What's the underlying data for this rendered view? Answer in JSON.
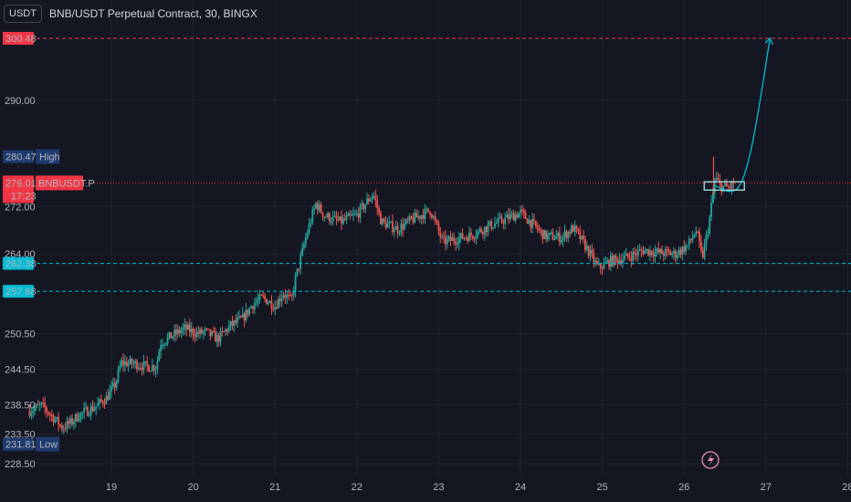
{
  "header": {
    "currency_button": "USDT",
    "title": "BNB/USDT Perpetual Contract, 30, BINGX"
  },
  "colors": {
    "background": "#141722",
    "grid": "#1f2330",
    "up": "#26a69a",
    "down": "#ef5350",
    "target_line": "#f23645",
    "support_line": "#00bcd4",
    "high_low_badge": "#1e3a6e"
  },
  "chart_data": {
    "type": "candlestick",
    "title": "BNB/USDT Perpetual Contract, 30, BINGX",
    "ylim": [
      225.5,
      303
    ],
    "xlim": [
      18.0,
      28.0
    ],
    "y_ticks": [
      "290.00",
      "272.00",
      "264.00",
      "250.50",
      "244.50",
      "238.50",
      "233.50",
      "228.50"
    ],
    "y_tick_values": [
      290.0,
      272.0,
      264.0,
      250.5,
      244.5,
      238.5,
      233.5,
      228.5
    ],
    "x_ticks": [
      "19",
      "20",
      "21",
      "22",
      "23",
      "24",
      "25",
      "26",
      "27",
      "28"
    ],
    "x_tick_values": [
      19,
      20,
      21,
      22,
      23,
      24,
      25,
      26,
      27,
      28
    ],
    "price_path": [
      [
        18.0,
        237.5
      ],
      [
        18.15,
        238.3
      ],
      [
        18.3,
        236.2
      ],
      [
        18.4,
        234.6
      ],
      [
        18.5,
        235.4
      ],
      [
        18.6,
        236.7
      ],
      [
        18.8,
        238.1
      ],
      [
        18.95,
        239.8
      ],
      [
        19.05,
        242.0
      ],
      [
        19.12,
        245.6
      ],
      [
        19.3,
        245.4
      ],
      [
        19.45,
        244.9
      ],
      [
        19.55,
        245.0
      ],
      [
        19.6,
        249.0
      ],
      [
        19.75,
        250.2
      ],
      [
        19.9,
        251.4
      ],
      [
        20.05,
        250.5
      ],
      [
        20.15,
        250.8
      ],
      [
        20.3,
        249.6
      ],
      [
        20.45,
        251.8
      ],
      [
        20.6,
        253.0
      ],
      [
        20.72,
        255.4
      ],
      [
        20.85,
        256.6
      ],
      [
        21.0,
        255.2
      ],
      [
        21.1,
        257.4
      ],
      [
        21.2,
        256.0
      ],
      [
        21.25,
        259.8
      ],
      [
        21.4,
        268.0
      ],
      [
        21.5,
        272.5
      ],
      [
        21.6,
        270.5
      ],
      [
        21.8,
        269.4
      ],
      [
        22.0,
        270.6
      ],
      [
        22.2,
        274.2
      ],
      [
        22.3,
        269.4
      ],
      [
        22.5,
        268.2
      ],
      [
        22.7,
        270.0
      ],
      [
        22.9,
        271.4
      ],
      [
        23.05,
        266.0
      ],
      [
        23.2,
        266.5
      ],
      [
        23.4,
        267.2
      ],
      [
        23.6,
        268.6
      ],
      [
        23.8,
        269.8
      ],
      [
        24.0,
        271.0
      ],
      [
        24.15,
        269.0
      ],
      [
        24.3,
        267.0
      ],
      [
        24.5,
        266.8
      ],
      [
        24.65,
        268.4
      ],
      [
        24.8,
        265.2
      ],
      [
        24.95,
        261.6
      ],
      [
        25.1,
        262.8
      ],
      [
        25.3,
        263.4
      ],
      [
        25.5,
        264.6
      ],
      [
        25.7,
        264.2
      ],
      [
        25.9,
        264.0
      ],
      [
        26.05,
        265.5
      ],
      [
        26.15,
        268.0
      ],
      [
        26.22,
        263.2
      ],
      [
        26.3,
        268.8
      ],
      [
        26.38,
        276.8
      ],
      [
        26.45,
        275.4
      ],
      [
        26.55,
        275.2
      ],
      [
        26.62,
        276.2
      ]
    ],
    "hlines": [
      {
        "label": "300.48",
        "value": 300.48,
        "style": "dashed",
        "color": "#f23645"
      },
      {
        "label": "276.01",
        "value": 276.01,
        "style": "dotted",
        "color": "#f23645"
      },
      {
        "label": "262.38",
        "value": 262.38,
        "style": "dashed",
        "color": "#00bcd4"
      },
      {
        "label": "257.68",
        "value": 257.68,
        "style": "dashed",
        "color": "#00bcd4"
      }
    ],
    "projection": [
      [
        26.38,
        275.6
      ],
      [
        26.55,
        274.3
      ],
      [
        26.7,
        275.3
      ],
      [
        26.85,
        283.0
      ],
      [
        27.05,
        300.5
      ]
    ],
    "markers": {
      "high": {
        "value": 280.47,
        "price_label": "280.47",
        "text": "High"
      },
      "low": {
        "value": 231.81,
        "price_label": "231.81",
        "text": "Low"
      },
      "last": {
        "value": 276.01,
        "price_label": "276.01",
        "countdown": "17:23",
        "symbol": "BNBUSDT.P"
      }
    }
  }
}
